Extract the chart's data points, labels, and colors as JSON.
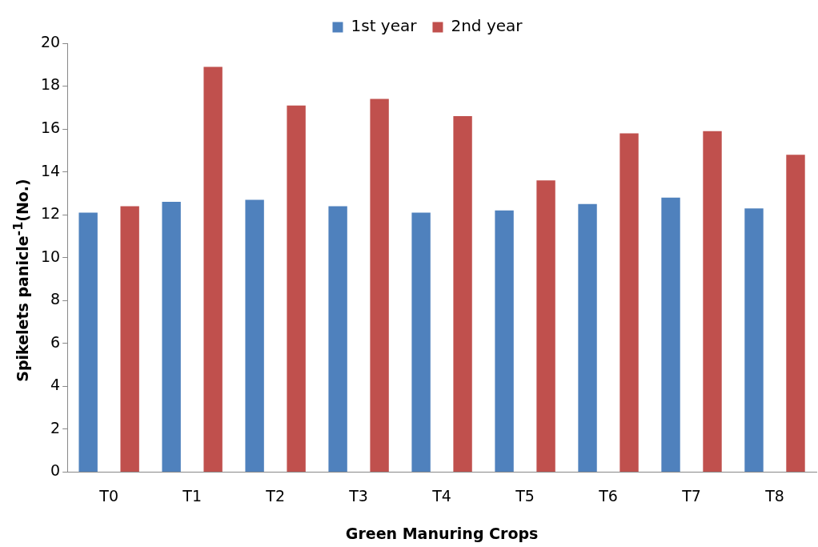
{
  "chart_data": {
    "type": "bar",
    "xlabel": "Green Manuring Crops",
    "ylabel": "Spikelets panicle$^{-1}$(No.)",
    "categories": [
      "T0",
      "T1",
      "T2",
      "T3",
      "T4",
      "T5",
      "T6",
      "T7",
      "T8"
    ],
    "series": [
      {
        "name": "1st year",
        "color": "#4f81bd",
        "values": [
          12.1,
          12.6,
          12.7,
          12.4,
          12.1,
          12.2,
          12.5,
          12.8,
          12.3
        ]
      },
      {
        "name": "2nd year",
        "color": "#c0504d",
        "values": [
          12.4,
          18.9,
          17.1,
          17.4,
          16.6,
          13.6,
          15.8,
          15.9,
          14.8
        ]
      }
    ],
    "ylim": [
      0,
      20
    ],
    "yticks": [
      0,
      2,
      4,
      6,
      8,
      10,
      12,
      14,
      16,
      18,
      20
    ],
    "grid": false,
    "legend": "top"
  }
}
